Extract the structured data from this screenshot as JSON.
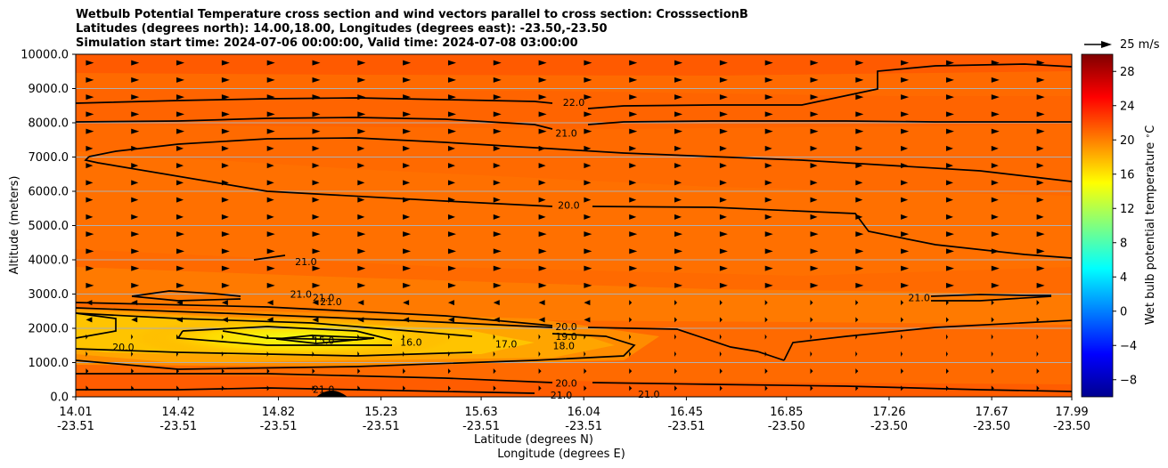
{
  "title_lines": [
    "Wetbulb Potential Temperature cross section and wind vectors parallel to cross section: CrosssectionB",
    "Latitudes (degrees north): 14.00,18.00, Longitudes (degrees east): -23.50,-23.50",
    "Simulation start time: 2024-07-06 00:00:00, Valid time: 2024-07-08 03:00:00"
  ],
  "chart_data": {
    "type": "contour",
    "title": "Wetbulb Potential Temperature cross section and wind vectors parallel to cross section: CrosssectionB",
    "ylabel": "Altitude (meters)",
    "xlabel_lat": "Latitude (degrees N)",
    "xlabel_lon": "Longitude (degrees E)",
    "ylim": [
      0,
      10000
    ],
    "yticks": [
      "0.0",
      "1000.0",
      "2000.0",
      "3000.0",
      "4000.0",
      "5000.0",
      "6000.0",
      "7000.0",
      "8000.0",
      "9000.0",
      "10000.0"
    ],
    "xrange": [
      14.01,
      17.99
    ],
    "xticks": [
      {
        "lat": "14.01",
        "lon": "-23.51"
      },
      {
        "lat": "14.42",
        "lon": "-23.51"
      },
      {
        "lat": "14.82",
        "lon": "-23.51"
      },
      {
        "lat": "15.23",
        "lon": "-23.51"
      },
      {
        "lat": "15.63",
        "lon": "-23.51"
      },
      {
        "lat": "16.04",
        "lon": "-23.51"
      },
      {
        "lat": "16.45",
        "lon": "-23.51"
      },
      {
        "lat": "16.85",
        "lon": "-23.50"
      },
      {
        "lat": "17.26",
        "lon": "-23.50"
      },
      {
        "lat": "17.67",
        "lon": "-23.50"
      },
      {
        "lat": "17.99",
        "lon": "-23.50"
      }
    ],
    "colorbar": {
      "label": "Wet bulb potential temperature $^\\circ$C",
      "range": [
        -10,
        30
      ],
      "ticks": [
        "-8",
        "-4",
        "0",
        "4",
        "8",
        "12",
        "16",
        "20",
        "24",
        "28"
      ]
    },
    "wind_reference": "25 m/s",
    "contour_labels": [
      {
        "text": "22.0",
        "lat": 16.0,
        "alt": 8600
      },
      {
        "text": "21.0",
        "lat": 15.97,
        "alt": 7700
      },
      {
        "text": "20.0",
        "lat": 15.98,
        "alt": 5600
      },
      {
        "text": "21.0",
        "lat": 14.93,
        "alt": 3950
      },
      {
        "text": "21.0",
        "lat": 14.91,
        "alt": 3000
      },
      {
        "text": "21.0",
        "lat": 15.0,
        "alt": 2900
      },
      {
        "text": "21.0",
        "lat": 15.03,
        "alt": 2780
      },
      {
        "text": "21.0",
        "lat": 17.38,
        "alt": 2900
      },
      {
        "text": "20.0",
        "lat": 15.97,
        "alt": 2050
      },
      {
        "text": "19.0",
        "lat": 15.97,
        "alt": 1770
      },
      {
        "text": "18.0",
        "lat": 15.96,
        "alt": 1500
      },
      {
        "text": "17.0",
        "lat": 15.73,
        "alt": 1550
      },
      {
        "text": "16.0",
        "lat": 15.35,
        "alt": 1600
      },
      {
        "text": "15.0",
        "lat": 15.0,
        "alt": 1650
      },
      {
        "text": "20.0",
        "lat": 14.2,
        "alt": 1450
      },
      {
        "text": "20.0",
        "lat": 15.97,
        "alt": 400
      },
      {
        "text": "21.0",
        "lat": 15.95,
        "alt": 50
      },
      {
        "text": "21.0",
        "lat": 16.3,
        "alt": 80
      },
      {
        "text": "21.0",
        "lat": 15.0,
        "alt": 220
      }
    ]
  }
}
